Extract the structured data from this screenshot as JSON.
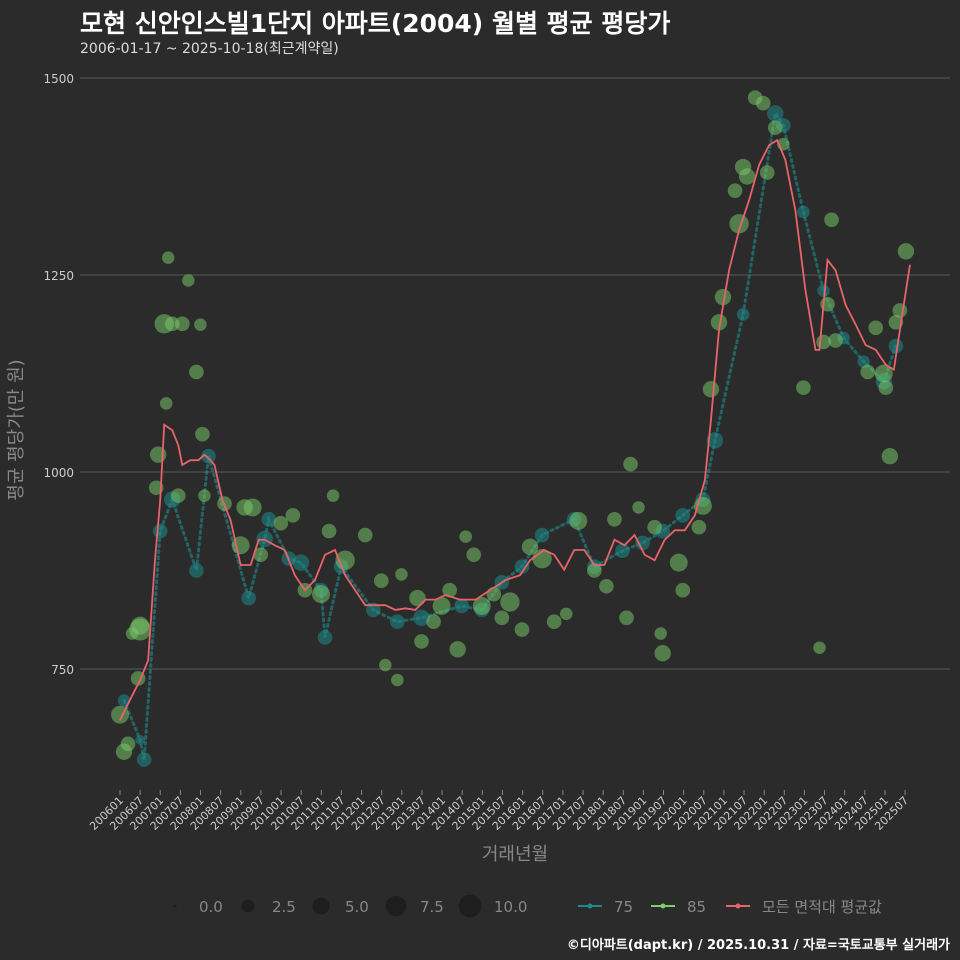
{
  "title": "모현 신안인스빌1단지 아파트(2004) 월별 평균 평당가",
  "subtitle": "2006-01-17 ~ 2025-10-18(최근계약일)",
  "footer": "©디아파트(dapt.kr) / 2025.10.31 / 자료=국토교통부 실거래가",
  "chart_data": {
    "type": "scatter",
    "xlabel": "거래년월",
    "ylabel": "평균 평당가(만 원)",
    "ylim": [
      590,
      1520
    ],
    "xlim": [
      2005.5,
      2026.1
    ],
    "yticks": [
      750,
      1000,
      1250,
      1500
    ],
    "grid": true,
    "xtick_labels": [
      "200601",
      "200607",
      "200701",
      "200707",
      "200801",
      "200807",
      "200901",
      "200907",
      "201001",
      "201007",
      "201101",
      "201107",
      "201201",
      "201207",
      "201301",
      "201307",
      "201401",
      "201407",
      "201501",
      "201507",
      "201601",
      "201607",
      "201701",
      "201707",
      "201801",
      "201807",
      "201901",
      "201907",
      "202001",
      "202007",
      "202101",
      "202107",
      "202201",
      "202207",
      "202301",
      "202307",
      "202401",
      "202407",
      "202501",
      "202507"
    ],
    "size_legend": {
      "title": "",
      "values": [
        "0.0",
        "2.5",
        "5.0",
        "7.5",
        "10.0"
      ]
    },
    "color_legend": [
      "75",
      "85",
      "모든 면적대 평균값"
    ],
    "colors": {
      "75": "#1f8a8a",
      "85": "#7ccf6a",
      "avg": "#e8646a"
    },
    "series": [
      {
        "name": "75",
        "type": "bubble",
        "points": [
          [
            2006.1,
            710,
            2
          ],
          [
            2006.5,
            660,
            1
          ],
          [
            2006.6,
            635,
            3
          ],
          [
            2007.0,
            925,
            3
          ],
          [
            2007.3,
            965,
            4
          ],
          [
            2007.9,
            875,
            3
          ],
          [
            2008.2,
            1020,
            3
          ],
          [
            2009.2,
            840,
            3
          ],
          [
            2009.6,
            915,
            4
          ],
          [
            2009.7,
            940,
            3
          ],
          [
            2010.2,
            890,
            3
          ],
          [
            2010.5,
            885,
            4
          ],
          [
            2011.0,
            850,
            3
          ],
          [
            2011.1,
            790,
            3
          ],
          [
            2011.5,
            880,
            3
          ],
          [
            2012.3,
            825,
            3
          ],
          [
            2012.9,
            810,
            3
          ],
          [
            2013.5,
            815,
            4
          ],
          [
            2014.5,
            830,
            3
          ],
          [
            2015.0,
            825,
            3
          ],
          [
            2015.5,
            860,
            3
          ],
          [
            2016.0,
            880,
            3
          ],
          [
            2016.5,
            920,
            3
          ],
          [
            2017.3,
            940,
            3
          ],
          [
            2017.8,
            880,
            3
          ],
          [
            2018.5,
            900,
            3
          ],
          [
            2019.0,
            910,
            3
          ],
          [
            2019.5,
            925,
            3
          ],
          [
            2020.0,
            945,
            3
          ],
          [
            2020.5,
            965,
            3
          ],
          [
            2020.8,
            1040,
            4
          ],
          [
            2021.5,
            1200,
            2
          ],
          [
            2022.3,
            1455,
            4
          ],
          [
            2022.5,
            1440,
            3
          ],
          [
            2023.0,
            1330,
            2
          ],
          [
            2023.5,
            1230,
            2
          ],
          [
            2024.0,
            1170,
            2
          ],
          [
            2024.5,
            1140,
            2
          ],
          [
            2025.0,
            1115,
            4
          ],
          [
            2025.3,
            1160,
            3
          ]
        ]
      },
      {
        "name": "85",
        "type": "bubble",
        "points": [
          [
            2006.0,
            692,
            5
          ],
          [
            2006.1,
            645,
            4
          ],
          [
            2006.2,
            655,
            3
          ],
          [
            2006.3,
            795,
            2
          ],
          [
            2006.5,
            800,
            8
          ],
          [
            2006.45,
            738,
            3
          ],
          [
            2006.5,
            805,
            5
          ],
          [
            2006.9,
            980,
            3
          ],
          [
            2006.95,
            1022,
            4
          ],
          [
            2007.1,
            1188,
            6
          ],
          [
            2007.15,
            1087,
            2
          ],
          [
            2007.2,
            1272,
            2
          ],
          [
            2007.3,
            1188,
            3
          ],
          [
            2007.45,
            970,
            3
          ],
          [
            2007.55,
            1188,
            3
          ],
          [
            2007.7,
            1243,
            2
          ],
          [
            2007.9,
            1127,
            3
          ],
          [
            2008.0,
            1187,
            2
          ],
          [
            2008.05,
            1048,
            3
          ],
          [
            2008.1,
            970,
            2
          ],
          [
            2008.6,
            960,
            3
          ],
          [
            2009.1,
            955,
            4
          ],
          [
            2009.0,
            907,
            5
          ],
          [
            2009.3,
            955,
            5
          ],
          [
            2009.5,
            895,
            3
          ],
          [
            2010.0,
            935,
            3
          ],
          [
            2010.3,
            945,
            3
          ],
          [
            2010.6,
            850,
            3
          ],
          [
            2011.0,
            845,
            5
          ],
          [
            2011.2,
            925,
            3
          ],
          [
            2011.3,
            970,
            2
          ],
          [
            2011.6,
            888,
            6
          ],
          [
            2012.1,
            920,
            3
          ],
          [
            2012.5,
            862,
            3
          ],
          [
            2012.6,
            755,
            2
          ],
          [
            2012.9,
            736,
            2
          ],
          [
            2013.0,
            870,
            2
          ],
          [
            2013.4,
            840,
            4
          ],
          [
            2013.5,
            785,
            3
          ],
          [
            2013.8,
            810,
            3
          ],
          [
            2014.0,
            830,
            5
          ],
          [
            2014.2,
            850,
            3
          ],
          [
            2014.4,
            775,
            4
          ],
          [
            2014.6,
            918,
            2
          ],
          [
            2014.8,
            895,
            3
          ],
          [
            2015.0,
            830,
            5
          ],
          [
            2015.3,
            845,
            3
          ],
          [
            2015.5,
            815,
            3
          ],
          [
            2015.7,
            835,
            6
          ],
          [
            2016.0,
            800,
            3
          ],
          [
            2016.2,
            905,
            4
          ],
          [
            2016.5,
            890,
            6
          ],
          [
            2016.8,
            810,
            3
          ],
          [
            2017.1,
            820,
            2
          ],
          [
            2017.4,
            938,
            5
          ],
          [
            2017.8,
            875,
            3
          ],
          [
            2018.1,
            855,
            3
          ],
          [
            2018.3,
            940,
            3
          ],
          [
            2018.6,
            815,
            3
          ],
          [
            2018.7,
            1010,
            3
          ],
          [
            2018.9,
            955,
            2
          ],
          [
            2019.3,
            930,
            3
          ],
          [
            2019.5,
            770,
            4
          ],
          [
            2019.45,
            795,
            2
          ],
          [
            2019.9,
            885,
            5
          ],
          [
            2020.0,
            850,
            3
          ],
          [
            2020.4,
            930,
            3
          ],
          [
            2020.5,
            957,
            5
          ],
          [
            2020.7,
            1105,
            4
          ],
          [
            2020.9,
            1190,
            4
          ],
          [
            2021.0,
            1222,
            4
          ],
          [
            2021.3,
            1357,
            3
          ],
          [
            2021.4,
            1315,
            6
          ],
          [
            2021.5,
            1387,
            4
          ],
          [
            2021.6,
            1375,
            4
          ],
          [
            2021.8,
            1475,
            3
          ],
          [
            2022.0,
            1468,
            3
          ],
          [
            2022.1,
            1380,
            3
          ],
          [
            2022.3,
            1437,
            3
          ],
          [
            2022.5,
            1416,
            2
          ],
          [
            2023.0,
            1107,
            3
          ],
          [
            2023.4,
            777,
            2
          ],
          [
            2023.5,
            1165,
            3
          ],
          [
            2023.7,
            1320,
            3
          ],
          [
            2023.6,
            1213,
            3
          ],
          [
            2023.8,
            1167,
            3
          ],
          [
            2024.6,
            1127,
            3
          ],
          [
            2024.8,
            1183,
            3
          ],
          [
            2025.0,
            1125,
            5
          ],
          [
            2025.05,
            1107,
            3
          ],
          [
            2025.15,
            1020,
            4
          ],
          [
            2025.3,
            1190,
            3
          ],
          [
            2025.4,
            1205,
            3
          ],
          [
            2025.55,
            1280,
            4
          ]
        ]
      },
      {
        "name": "모든 면적대 평균값",
        "type": "line",
        "points": [
          [
            2006.0,
            685
          ],
          [
            2006.25,
            711
          ],
          [
            2006.5,
            736
          ],
          [
            2006.7,
            761
          ],
          [
            2006.87,
            888
          ],
          [
            2007.0,
            964
          ],
          [
            2007.1,
            1060
          ],
          [
            2007.3,
            1053
          ],
          [
            2007.45,
            1034
          ],
          [
            2007.55,
            1009
          ],
          [
            2007.75,
            1015
          ],
          [
            2007.95,
            1015
          ],
          [
            2008.1,
            1022
          ],
          [
            2008.25,
            1015
          ],
          [
            2008.35,
            1009
          ],
          [
            2008.55,
            964
          ],
          [
            2008.75,
            939
          ],
          [
            2009.0,
            882
          ],
          [
            2009.25,
            882
          ],
          [
            2009.45,
            914
          ],
          [
            2009.6,
            914
          ],
          [
            2009.85,
            907
          ],
          [
            2010.1,
            901
          ],
          [
            2010.35,
            869
          ],
          [
            2010.6,
            850
          ],
          [
            2010.85,
            863
          ],
          [
            2011.1,
            895
          ],
          [
            2011.35,
            901
          ],
          [
            2011.6,
            869
          ],
          [
            2011.85,
            850
          ],
          [
            2012.1,
            831
          ],
          [
            2012.35,
            831
          ],
          [
            2012.6,
            831
          ],
          [
            2012.85,
            825
          ],
          [
            2013.1,
            827
          ],
          [
            2013.35,
            825
          ],
          [
            2013.6,
            838
          ],
          [
            2013.85,
            838
          ],
          [
            2014.1,
            844
          ],
          [
            2014.45,
            838
          ],
          [
            2014.85,
            838
          ],
          [
            2015.2,
            850
          ],
          [
            2015.6,
            863
          ],
          [
            2015.95,
            869
          ],
          [
            2016.2,
            888
          ],
          [
            2016.55,
            901
          ],
          [
            2016.8,
            895
          ],
          [
            2017.05,
            876
          ],
          [
            2017.3,
            901
          ],
          [
            2017.55,
            901
          ],
          [
            2017.8,
            882
          ],
          [
            2018.05,
            882
          ],
          [
            2018.3,
            914
          ],
          [
            2018.55,
            907
          ],
          [
            2018.8,
            920
          ],
          [
            2019.05,
            895
          ],
          [
            2019.3,
            888
          ],
          [
            2019.55,
            914
          ],
          [
            2019.8,
            926
          ],
          [
            2020.05,
            926
          ],
          [
            2020.3,
            945
          ],
          [
            2020.55,
            990
          ],
          [
            2020.7,
            1066
          ],
          [
            2020.9,
            1180
          ],
          [
            2021.15,
            1256
          ],
          [
            2021.4,
            1307
          ],
          [
            2021.65,
            1345
          ],
          [
            2021.9,
            1390
          ],
          [
            2022.15,
            1415
          ],
          [
            2022.35,
            1421
          ],
          [
            2022.55,
            1396
          ],
          [
            2022.8,
            1332
          ],
          [
            2023.05,
            1231
          ],
          [
            2023.3,
            1155
          ],
          [
            2023.4,
            1155
          ],
          [
            2023.6,
            1269
          ],
          [
            2023.8,
            1256
          ],
          [
            2024.05,
            1212
          ],
          [
            2024.3,
            1187
          ],
          [
            2024.55,
            1161
          ],
          [
            2024.8,
            1155
          ],
          [
            2025.05,
            1136
          ],
          [
            2025.25,
            1130
          ],
          [
            2025.4,
            1180
          ],
          [
            2025.65,
            1263
          ]
        ]
      }
    ]
  }
}
